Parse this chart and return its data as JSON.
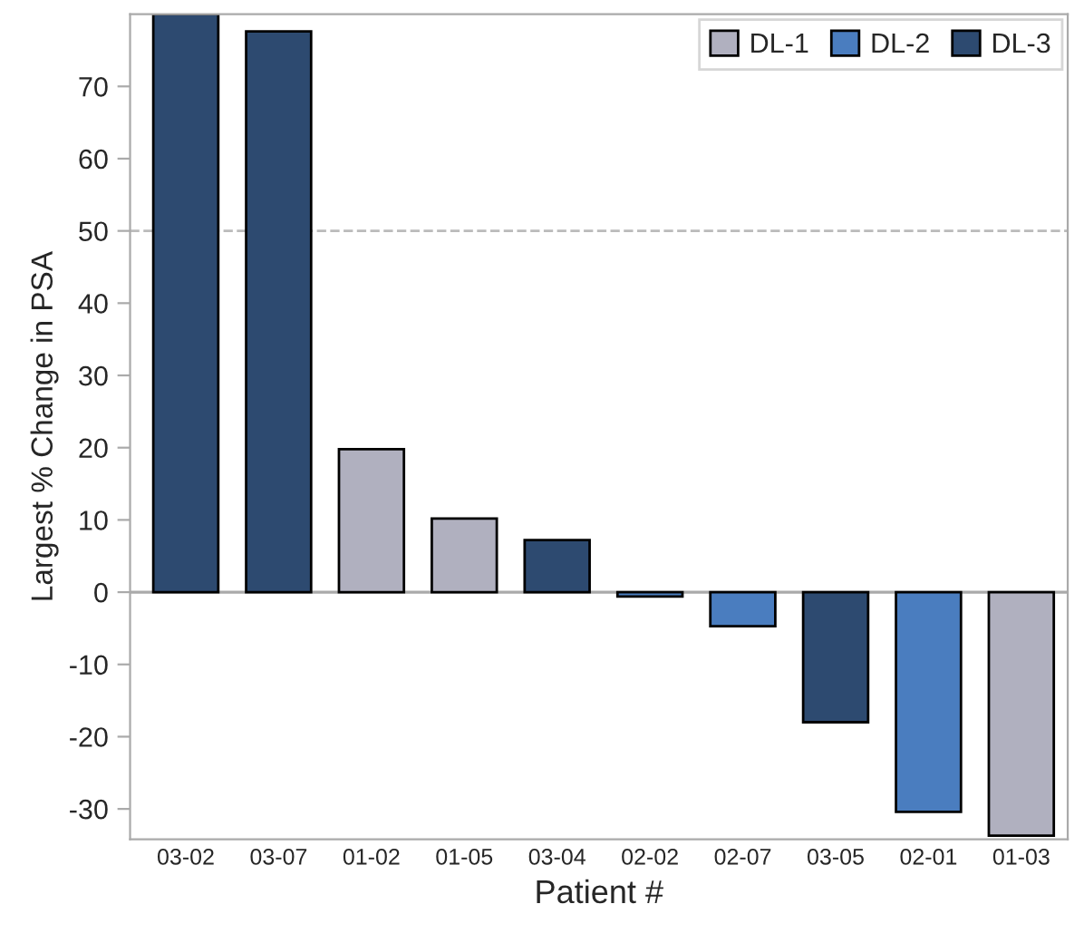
{
  "chart_data": {
    "type": "bar",
    "stacked": true,
    "xlabel": "Patient #",
    "ylabel": "Largest % Change in PSA",
    "categories": [
      "03-02",
      "03-07",
      "01-02",
      "01-05",
      "03-04",
      "02-02",
      "02-07",
      "03-05",
      "02-01",
      "01-03"
    ],
    "series": [
      {
        "name": "DL-1",
        "color": "#b0b0bf",
        "values": [
          null,
          null,
          19.8,
          10.2,
          null,
          null,
          null,
          null,
          null,
          -33.7
        ]
      },
      {
        "name": "DL-2",
        "color": "#4a7dbf",
        "values": [
          null,
          null,
          null,
          null,
          null,
          -0.6,
          -4.7,
          null,
          -30.4,
          null
        ]
      },
      {
        "name": "DL-3",
        "color": "#2d4a70",
        "values": [
          80,
          77.6,
          null,
          null,
          7.2,
          null,
          null,
          -18,
          null,
          null
        ]
      }
    ],
    "ylim": [
      -34.2,
      80
    ],
    "yticks": [
      -30,
      -20,
      -10,
      0,
      10,
      20,
      30,
      40,
      50,
      60,
      70
    ],
    "ref_lines": [
      {
        "axis": "y",
        "value": 50,
        "color": "#bbbbbb",
        "line_style": "dashed"
      }
    ],
    "legend": "top right",
    "grid": false
  }
}
